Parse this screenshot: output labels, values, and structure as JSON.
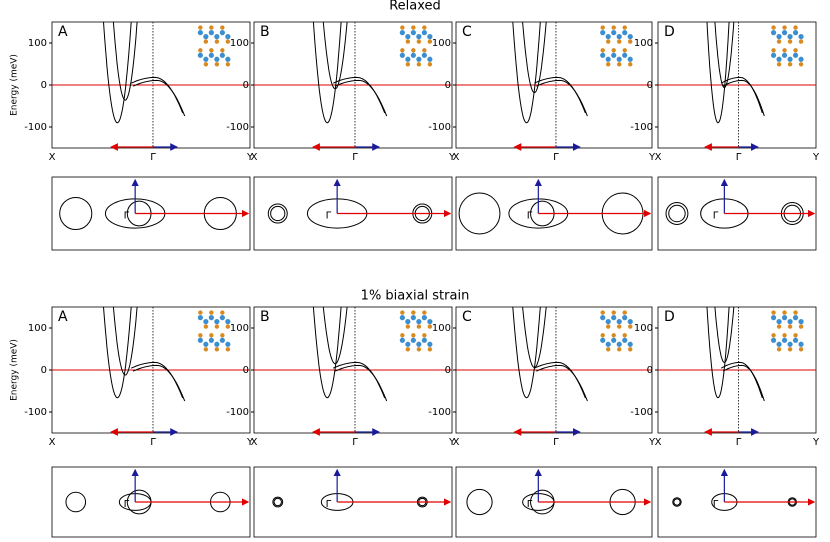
{
  "y_axis_label": "Energy (meV)",
  "ylim": [
    -150,
    150
  ],
  "yticks": [
    -100,
    0,
    100
  ],
  "x_labels": [
    "X",
    "Γ",
    "Y"
  ],
  "gamma_label": "Γ",
  "sections": [
    {
      "title": "Relaxed",
      "panels": [
        {
          "label": "A"
        },
        {
          "label": "B"
        },
        {
          "label": "C"
        },
        {
          "label": "D"
        }
      ]
    },
    {
      "title": "1% biaxial strain",
      "panels": [
        {
          "label": "A"
        },
        {
          "label": "B"
        },
        {
          "label": "C"
        },
        {
          "label": "D"
        }
      ]
    }
  ]
}
